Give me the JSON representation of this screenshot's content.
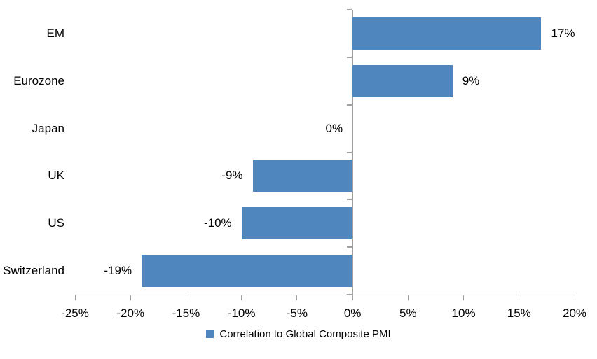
{
  "chart_data": {
    "type": "bar",
    "orientation": "horizontal",
    "title": "",
    "categories": [
      "EM",
      "Eurozone",
      "Japan",
      "UK",
      "US",
      "Switzerland"
    ],
    "series": [
      {
        "name": "Correlation to Global Composite PMI",
        "values": [
          17,
          9,
          0,
          -9,
          -10,
          -19
        ],
        "value_labels": [
          "17%",
          "9%",
          "0%",
          "-9%",
          "-10%",
          "-19%"
        ],
        "color": "#4F86BE"
      }
    ],
    "xlim": [
      -25,
      20
    ],
    "x_ticks": [
      {
        "value": -25,
        "label": "-25%"
      },
      {
        "value": -20,
        "label": "-20%"
      },
      {
        "value": -15,
        "label": "-15%"
      },
      {
        "value": -10,
        "label": "-10%"
      },
      {
        "value": -5,
        "label": "-5%"
      },
      {
        "value": 0,
        "label": "0%"
      },
      {
        "value": 5,
        "label": "5%"
      },
      {
        "value": 10,
        "label": "10%"
      },
      {
        "value": 15,
        "label": "15%"
      },
      {
        "value": 20,
        "label": "20%"
      }
    ],
    "grid": false,
    "legend": {
      "position": "bottom",
      "entries": [
        {
          "label": "Correlation to Global Composite PMI",
          "color": "#4F86BE"
        }
      ]
    },
    "colors": {
      "bar": "#4F86BE",
      "axis": "#A0A0A0",
      "text": "#000000",
      "background": "#FFFFFF"
    }
  }
}
